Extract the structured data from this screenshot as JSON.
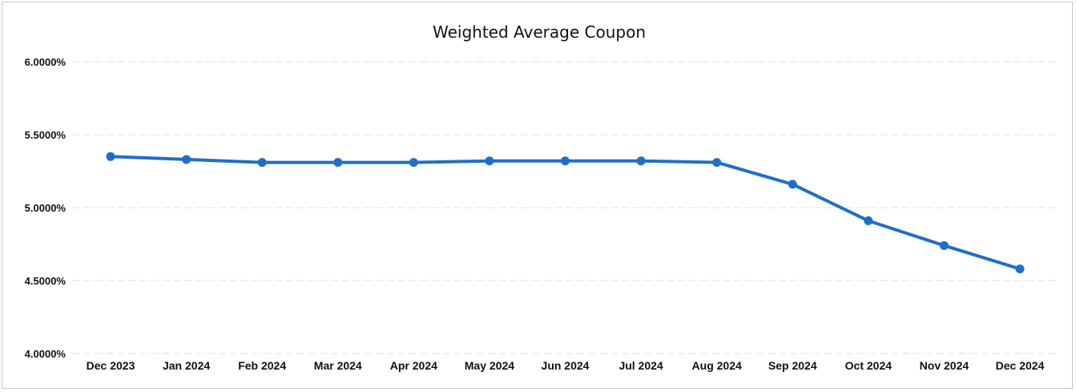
{
  "chart_data": {
    "type": "line",
    "title": "Weighted Average Coupon",
    "xlabel": "",
    "ylabel": "",
    "categories": [
      "Dec 2023",
      "Jan 2024",
      "Feb 2024",
      "Mar 2024",
      "Apr 2024",
      "May 2024",
      "Jun 2024",
      "Jul 2024",
      "Aug 2024",
      "Sep 2024",
      "Oct 2024",
      "Nov 2024",
      "Dec 2024"
    ],
    "series": [
      {
        "values": [
          5.35,
          5.33,
          5.31,
          5.31,
          5.31,
          5.32,
          5.32,
          5.32,
          5.31,
          5.16,
          4.91,
          4.74,
          4.58
        ],
        "color": "#1f6fc8"
      }
    ],
    "ylim": [
      4.0,
      6.0
    ],
    "yticks": [
      4.0,
      4.5,
      5.0,
      5.5,
      6.0
    ],
    "ytick_labels": [
      "4.0000%",
      "4.5000%",
      "5.0000%",
      "5.5000%",
      "6.0000%"
    ],
    "grid": true,
    "legend": "none"
  }
}
